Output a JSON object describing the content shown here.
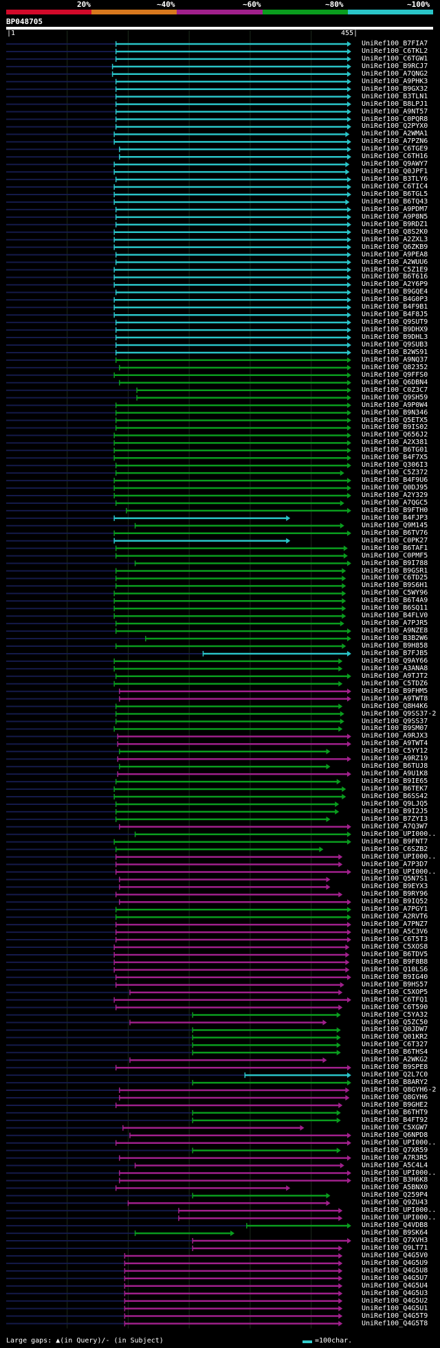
{
  "header": {
    "percent_labels": [
      "20%",
      "~40%",
      "~60%",
      "~80%",
      "~100%"
    ],
    "colors": [
      "#d20a2a",
      "#d7781e",
      "#a0208c",
      "#0a9c1e",
      "#2ac4c8"
    ],
    "sequence_id": "BP048705",
    "scale_start": "|1",
    "scale_end": "455|"
  },
  "hits": [
    {
      "label": "UniRef100_B7FIA7",
      "color": "#2ac4c8",
      "start": 0.315,
      "end": 0.99
    },
    {
      "label": "UniRef100_C6TKL2",
      "color": "#2ac4c8",
      "start": 0.315,
      "end": 0.99
    },
    {
      "label": "UniRef100_C6TGW1",
      "color": "#2ac4c8",
      "start": 0.315,
      "end": 0.99
    },
    {
      "label": "UniRef100_B9RCJ7",
      "color": "#2ac4c8",
      "start": 0.305,
      "end": 0.99
    },
    {
      "label": "UniRef100_A7QNG2",
      "color": "#2ac4c8",
      "start": 0.305,
      "end": 0.99
    },
    {
      "label": "UniRef100_A9PHK3",
      "color": "#2ac4c8",
      "start": 0.315,
      "end": 0.99
    },
    {
      "label": "UniRef100_B9GX32",
      "color": "#2ac4c8",
      "start": 0.315,
      "end": 0.99
    },
    {
      "label": "UniRef100_B3TLN1",
      "color": "#2ac4c8",
      "start": 0.315,
      "end": 0.99
    },
    {
      "label": "UniRef100_B8LPJ1",
      "color": "#2ac4c8",
      "start": 0.315,
      "end": 0.99
    },
    {
      "label": "UniRef100_A9NT57",
      "color": "#2ac4c8",
      "start": 0.315,
      "end": 0.99
    },
    {
      "label": "UniRef100_C0PQR8",
      "color": "#2ac4c8",
      "start": 0.315,
      "end": 0.99
    },
    {
      "label": "UniRef100_Q2PYX0",
      "color": "#2ac4c8",
      "start": 0.315,
      "end": 0.99
    },
    {
      "label": "UniRef100_A2WMA1",
      "color": "#2ac4c8",
      "start": 0.31,
      "end": 0.985
    },
    {
      "label": "UniRef100_A7PZN6",
      "color": "#2ac4c8",
      "start": 0.31,
      "end": 0.99
    },
    {
      "label": "UniRef100_C6TGE9",
      "color": "#2ac4c8",
      "start": 0.325,
      "end": 0.99
    },
    {
      "label": "UniRef100_C6TH16",
      "color": "#2ac4c8",
      "start": 0.325,
      "end": 0.99
    },
    {
      "label": "UniRef100_Q9AWY7",
      "color": "#2ac4c8",
      "start": 0.31,
      "end": 0.985
    },
    {
      "label": "UniRef100_Q0JPF1",
      "color": "#2ac4c8",
      "start": 0.31,
      "end": 0.985
    },
    {
      "label": "UniRef100_B3TLY6",
      "color": "#2ac4c8",
      "start": 0.315,
      "end": 0.99
    },
    {
      "label": "UniRef100_C6TIC4",
      "color": "#2ac4c8",
      "start": 0.31,
      "end": 0.99
    },
    {
      "label": "UniRef100_B6TGL5",
      "color": "#2ac4c8",
      "start": 0.31,
      "end": 0.99
    },
    {
      "label": "UniRef100_B6TQ43",
      "color": "#2ac4c8",
      "start": 0.31,
      "end": 0.985
    },
    {
      "label": "UniRef100_A9PDM7",
      "color": "#2ac4c8",
      "start": 0.315,
      "end": 0.99
    },
    {
      "label": "UniRef100_A9P8N5",
      "color": "#2ac4c8",
      "start": 0.315,
      "end": 0.99
    },
    {
      "label": "UniRef100_B9RDZ1",
      "color": "#2ac4c8",
      "start": 0.315,
      "end": 0.99
    },
    {
      "label": "UniRef100_Q8S2K0",
      "color": "#2ac4c8",
      "start": 0.31,
      "end": 0.99
    },
    {
      "label": "UniRef100_A2ZXL3",
      "color": "#2ac4c8",
      "start": 0.31,
      "end": 0.99
    },
    {
      "label": "UniRef100_Q6ZKB9",
      "color": "#2ac4c8",
      "start": 0.31,
      "end": 0.99
    },
    {
      "label": "UniRef100_A9PEA8",
      "color": "#2ac4c8",
      "start": 0.315,
      "end": 0.99
    },
    {
      "label": "UniRef100_A2WUU6",
      "color": "#2ac4c8",
      "start": 0.315,
      "end": 0.99
    },
    {
      "label": "UniRef100_C5Z1E9",
      "color": "#2ac4c8",
      "start": 0.31,
      "end": 0.99
    },
    {
      "label": "UniRef100_B6T616",
      "color": "#2ac4c8",
      "start": 0.31,
      "end": 0.99
    },
    {
      "label": "UniRef100_A2Y6P9",
      "color": "#2ac4c8",
      "start": 0.31,
      "end": 0.99
    },
    {
      "label": "UniRef100_B9GQE4",
      "color": "#2ac4c8",
      "start": 0.315,
      "end": 0.99
    },
    {
      "label": "UniRef100_B4G0P3",
      "color": "#2ac4c8",
      "start": 0.31,
      "end": 0.99
    },
    {
      "label": "UniRef100_B4F9B1",
      "color": "#2ac4c8",
      "start": 0.31,
      "end": 0.99
    },
    {
      "label": "UniRef100_B4F8J5",
      "color": "#2ac4c8",
      "start": 0.31,
      "end": 0.99
    },
    {
      "label": "UniRef100_Q9SUT9",
      "color": "#2ac4c8",
      "start": 0.315,
      "end": 0.99
    },
    {
      "label": "UniRef100_B9DHX9",
      "color": "#2ac4c8",
      "start": 0.315,
      "end": 0.99
    },
    {
      "label": "UniRef100_B9DHL3",
      "color": "#2ac4c8",
      "start": 0.315,
      "end": 0.99
    },
    {
      "label": "UniRef100_Q9SUB3",
      "color": "#2ac4c8",
      "start": 0.315,
      "end": 0.99
    },
    {
      "label": "UniRef100_B2WS91",
      "color": "#2ac4c8",
      "start": 0.315,
      "end": 0.99
    },
    {
      "label": "UniRef100_A9NQ37",
      "color": "#0a9c1e",
      "start": 0.315,
      "end": 0.99
    },
    {
      "label": "UniRef100_Q82352",
      "color": "#0a9c1e",
      "start": 0.325,
      "end": 0.99
    },
    {
      "label": "UniRef100_Q9FFS0",
      "color": "#0a9c1e",
      "start": 0.31,
      "end": 0.99
    },
    {
      "label": "UniRef100_Q6DBN4",
      "color": "#0a9c1e",
      "start": 0.325,
      "end": 0.99
    },
    {
      "label": "UniRef100_C0Z3C7",
      "color": "#0a9c1e",
      "start": 0.375,
      "end": 0.99
    },
    {
      "label": "UniRef100_Q9SH59",
      "color": "#0a9c1e",
      "start": 0.375,
      "end": 0.99
    },
    {
      "label": "UniRef100_A9P0W4",
      "color": "#0a9c1e",
      "start": 0.315,
      "end": 0.99
    },
    {
      "label": "UniRef100_B9N346",
      "color": "#0a9c1e",
      "start": 0.315,
      "end": 0.99
    },
    {
      "label": "UniRef100_Q5ETX5",
      "color": "#0a9c1e",
      "start": 0.315,
      "end": 0.99
    },
    {
      "label": "UniRef100_B9IS02",
      "color": "#0a9c1e",
      "start": 0.315,
      "end": 0.99
    },
    {
      "label": "UniRef100_Q656J2",
      "color": "#0a9c1e",
      "start": 0.31,
      "end": 0.99
    },
    {
      "label": "UniRef100_A2X381",
      "color": "#0a9c1e",
      "start": 0.31,
      "end": 0.99
    },
    {
      "label": "UniRef100_B6TG01",
      "color": "#0a9c1e",
      "start": 0.31,
      "end": 0.99
    },
    {
      "label": "UniRef100_B4F7X5",
      "color": "#0a9c1e",
      "start": 0.31,
      "end": 0.99
    },
    {
      "label": "UniRef100_Q306I3",
      "color": "#0a9c1e",
      "start": 0.315,
      "end": 0.99
    },
    {
      "label": "UniRef100_C5Z372",
      "color": "#0a9c1e",
      "start": 0.315,
      "end": 0.97
    },
    {
      "label": "UniRef100_B4F9U6",
      "color": "#0a9c1e",
      "start": 0.31,
      "end": 0.99
    },
    {
      "label": "UniRef100_Q0DJ95",
      "color": "#0a9c1e",
      "start": 0.31,
      "end": 0.99
    },
    {
      "label": "UniRef100_A2Y329",
      "color": "#0a9c1e",
      "start": 0.31,
      "end": 0.99
    },
    {
      "label": "UniRef100_A7QGC5",
      "color": "#0a9c1e",
      "start": 0.315,
      "end": 0.97
    },
    {
      "label": "UniRef100_B9FTH0",
      "color": "#0a9c1e",
      "start": 0.345,
      "end": 0.99
    },
    {
      "label": "UniRef100_B4FJP3",
      "color": "#2ac4c8",
      "start": 0.31,
      "end": 0.815
    },
    {
      "label": "UniRef100_Q9M145",
      "color": "#0a9c1e",
      "start": 0.37,
      "end": 0.97
    },
    {
      "label": "UniRef100_B6TV76",
      "color": "#0a9c1e",
      "start": 0.31,
      "end": 0.99
    },
    {
      "label": "UniRef100_C0PK27",
      "color": "#2ac4c8",
      "start": 0.31,
      "end": 0.815
    },
    {
      "label": "UniRef100_B6TAF1",
      "color": "#0a9c1e",
      "start": 0.315,
      "end": 0.98
    },
    {
      "label": "UniRef100_C0PMF5",
      "color": "#0a9c1e",
      "start": 0.315,
      "end": 0.98
    },
    {
      "label": "UniRef100_B9I788",
      "color": "#0a9c1e",
      "start": 0.37,
      "end": 0.99
    },
    {
      "label": "UniRef100_B9GSR1",
      "color": "#0a9c1e",
      "start": 0.315,
      "end": 0.975
    },
    {
      "label": "UniRef100_C6TD25",
      "color": "#0a9c1e",
      "start": 0.315,
      "end": 0.975
    },
    {
      "label": "UniRef100_B9S6H1",
      "color": "#0a9c1e",
      "start": 0.315,
      "end": 0.975
    },
    {
      "label": "UniRef100_C5WY96",
      "color": "#0a9c1e",
      "start": 0.31,
      "end": 0.975
    },
    {
      "label": "UniRef100_B6T4A9",
      "color": "#0a9c1e",
      "start": 0.31,
      "end": 0.975
    },
    {
      "label": "UniRef100_B6SQ11",
      "color": "#0a9c1e",
      "start": 0.31,
      "end": 0.975
    },
    {
      "label": "UniRef100_B4FLV0",
      "color": "#0a9c1e",
      "start": 0.31,
      "end": 0.975
    },
    {
      "label": "UniRef100_A7PJR5",
      "color": "#0a9c1e",
      "start": 0.315,
      "end": 0.97
    },
    {
      "label": "UniRef100_A9NZE8",
      "color": "#0a9c1e",
      "start": 0.315,
      "end": 0.99
    },
    {
      "label": "UniRef100_B3B2W6",
      "color": "#0a9c1e",
      "start": 0.4,
      "end": 0.99
    },
    {
      "label": "UniRef100_B9H858",
      "color": "#0a9c1e",
      "start": 0.315,
      "end": 0.975
    },
    {
      "label": "UniRef100_B7FJB5",
      "color": "#2ac4c8",
      "start": 0.565,
      "end": 0.99
    },
    {
      "label": "UniRef100_Q9AY66",
      "color": "#0a9c1e",
      "start": 0.31,
      "end": 0.965
    },
    {
      "label": "UniRef100_A3ANA8",
      "color": "#0a9c1e",
      "start": 0.31,
      "end": 0.965
    },
    {
      "label": "UniRef100_A9TJT2",
      "color": "#0a9c1e",
      "start": 0.315,
      "end": 0.99
    },
    {
      "label": "UniRef100_C5TDZ6",
      "color": "#0a9c1e",
      "start": 0.31,
      "end": 0.965
    },
    {
      "label": "UniRef100_B9FHM5",
      "color": "#a0208c",
      "start": 0.325,
      "end": 0.99
    },
    {
      "label": "UniRef100_A9TWT8",
      "color": "#a0208c",
      "start": 0.325,
      "end": 0.99
    },
    {
      "label": "UniRef100_Q8H4K6",
      "color": "#0a9c1e",
      "start": 0.315,
      "end": 0.965
    },
    {
      "label": "UniRef100_Q9SS37-2",
      "color": "#0a9c1e",
      "start": 0.315,
      "end": 0.97
    },
    {
      "label": "UniRef100_Q9SS37",
      "color": "#0a9c1e",
      "start": 0.315,
      "end": 0.97
    },
    {
      "label": "UniRef100_B9SM07",
      "color": "#0a9c1e",
      "start": 0.31,
      "end": 0.965
    },
    {
      "label": "UniRef100_A9RJX3",
      "color": "#a0208c",
      "start": 0.32,
      "end": 0.99
    },
    {
      "label": "UniRef100_A9TWT4",
      "color": "#a0208c",
      "start": 0.32,
      "end": 0.99
    },
    {
      "label": "UniRef100_C5YY12",
      "color": "#0a9c1e",
      "start": 0.325,
      "end": 0.93
    },
    {
      "label": "UniRef100_A9RZ19",
      "color": "#a0208c",
      "start": 0.32,
      "end": 0.99
    },
    {
      "label": "UniRef100_B6TUJ8",
      "color": "#0a9c1e",
      "start": 0.325,
      "end": 0.93
    },
    {
      "label": "UniRef100_A9U1K8",
      "color": "#a0208c",
      "start": 0.32,
      "end": 0.99
    },
    {
      "label": "UniRef100_B9IE65",
      "color": "#0a9c1e",
      "start": 0.315,
      "end": 0.96
    },
    {
      "label": "UniRef100_B6TEK7",
      "color": "#0a9c1e",
      "start": 0.31,
      "end": 0.975
    },
    {
      "label": "UniRef100_B6SS42",
      "color": "#0a9c1e",
      "start": 0.31,
      "end": 0.975
    },
    {
      "label": "UniRef100_Q9LJQ5",
      "color": "#0a9c1e",
      "start": 0.315,
      "end": 0.955
    },
    {
      "label": "UniRef100_B9I2J5",
      "color": "#0a9c1e",
      "start": 0.315,
      "end": 0.955
    },
    {
      "label": "UniRef100_B7ZYI3",
      "color": "#0a9c1e",
      "start": 0.315,
      "end": 0.93
    },
    {
      "label": "UniRef100_A7Q3W7",
      "color": "#a0208c",
      "start": 0.325,
      "end": 0.99
    },
    {
      "label": "UniRef100_UPI000..",
      "color": "#0a9c1e",
      "start": 0.37,
      "end": 0.99
    },
    {
      "label": "UniRef100_B9FNT7",
      "color": "#0a9c1e",
      "start": 0.31,
      "end": 0.99
    },
    {
      "label": "UniRef100_C6SZB2",
      "color": "#0a9c1e",
      "start": 0.315,
      "end": 0.91
    },
    {
      "label": "UniRef100_UPI000..",
      "color": "#a0208c",
      "start": 0.315,
      "end": 0.965
    },
    {
      "label": "UniRef100_A7P3D7",
      "color": "#a0208c",
      "start": 0.315,
      "end": 0.965
    },
    {
      "label": "UniRef100_UPI000..",
      "color": "#a0208c",
      "start": 0.315,
      "end": 0.99
    },
    {
      "label": "UniRef100_Q5N7S1",
      "color": "#a0208c",
      "start": 0.325,
      "end": 0.93
    },
    {
      "label": "UniRef100_B9EYX3",
      "color": "#a0208c",
      "start": 0.325,
      "end": 0.93
    },
    {
      "label": "UniRef100_B9RY96",
      "color": "#a0208c",
      "start": 0.315,
      "end": 0.965
    },
    {
      "label": "UniRef100_B9IQ52",
      "color": "#a0208c",
      "start": 0.325,
      "end": 0.99
    },
    {
      "label": "UniRef100_A7PGY1",
      "color": "#0a9c1e",
      "start": 0.315,
      "end": 0.99
    },
    {
      "label": "UniRef100_A2RVT6",
      "color": "#0a9c1e",
      "start": 0.315,
      "end": 0.99
    },
    {
      "label": "UniRef100_A7PNZ7",
      "color": "#a0208c",
      "start": 0.315,
      "end": 0.99
    },
    {
      "label": "UniRef100_A5C3V6",
      "color": "#a0208c",
      "start": 0.315,
      "end": 0.99
    },
    {
      "label": "UniRef100_C6T5T3",
      "color": "#a0208c",
      "start": 0.315,
      "end": 0.99
    },
    {
      "label": "UniRef100_C5XOS8",
      "color": "#a0208c",
      "start": 0.31,
      "end": 0.985
    },
    {
      "label": "UniRef100_B6TDV5",
      "color": "#a0208c",
      "start": 0.31,
      "end": 0.985
    },
    {
      "label": "UniRef100_B9F8B8",
      "color": "#a0208c",
      "start": 0.31,
      "end": 0.985
    },
    {
      "label": "UniRef100_Q10LS6",
      "color": "#a0208c",
      "start": 0.31,
      "end": 0.985
    },
    {
      "label": "UniRef100_B9IG40",
      "color": "#a0208c",
      "start": 0.315,
      "end": 0.99
    },
    {
      "label": "UniRef100_B9HS57",
      "color": "#a0208c",
      "start": 0.315,
      "end": 0.97
    },
    {
      "label": "UniRef100_C5XOP5",
      "color": "#a0208c",
      "start": 0.355,
      "end": 0.965
    },
    {
      "label": "UniRef100_C6TFQ1",
      "color": "#a0208c",
      "start": 0.31,
      "end": 0.99
    },
    {
      "label": "UniRef100_C6T590",
      "color": "#a0208c",
      "start": 0.315,
      "end": 0.965
    },
    {
      "label": "UniRef100_C5YA32",
      "color": "#0a9c1e",
      "start": 0.535,
      "end": 0.96
    },
    {
      "label": "UniRef100_Q5ZC50",
      "color": "#a0208c",
      "start": 0.355,
      "end": 0.92
    },
    {
      "label": "UniRef100_Q0JDW7",
      "color": "#0a9c1e",
      "start": 0.535,
      "end": 0.96
    },
    {
      "label": "UniRef100_Q01KR2",
      "color": "#0a9c1e",
      "start": 0.535,
      "end": 0.96
    },
    {
      "label": "UniRef100_C6T327",
      "color": "#0a9c1e",
      "start": 0.535,
      "end": 0.96
    },
    {
      "label": "UniRef100_B6THS4",
      "color": "#0a9c1e",
      "start": 0.535,
      "end": 0.96
    },
    {
      "label": "UniRef100_A2WKG2",
      "color": "#a0208c",
      "start": 0.355,
      "end": 0.92
    },
    {
      "label": "UniRef100_B9SPE8",
      "color": "#a0208c",
      "start": 0.315,
      "end": 0.99
    },
    {
      "label": "UniRef100_Q2L7C0",
      "color": "#2ac4c8",
      "start": 0.685,
      "end": 0.99
    },
    {
      "label": "UniRef100_B8ARY2",
      "color": "#0a9c1e",
      "start": 0.535,
      "end": 0.99
    },
    {
      "label": "UniRef100_Q8GYH6-2",
      "color": "#a0208c",
      "start": 0.325,
      "end": 0.985
    },
    {
      "label": "UniRef100_Q8GYH6",
      "color": "#a0208c",
      "start": 0.325,
      "end": 0.985
    },
    {
      "label": "UniRef100_B9GHE2",
      "color": "#a0208c",
      "start": 0.315,
      "end": 0.965
    },
    {
      "label": "UniRef100_B6THT9",
      "color": "#0a9c1e",
      "start": 0.535,
      "end": 0.96
    },
    {
      "label": "UniRef100_B4FT92",
      "color": "#0a9c1e",
      "start": 0.535,
      "end": 0.96
    },
    {
      "label": "UniRef100_C5XGW7",
      "color": "#a0208c",
      "start": 0.335,
      "end": 0.855
    },
    {
      "label": "UniRef100_Q6NPD8",
      "color": "#a0208c",
      "start": 0.355,
      "end": 0.99
    },
    {
      "label": "UniRef100_UPI000..",
      "color": "#a0208c",
      "start": 0.315,
      "end": 0.99
    },
    {
      "label": "UniRef100_Q7XR59",
      "color": "#0a9c1e",
      "start": 0.535,
      "end": 0.96
    },
    {
      "label": "UniRef100_A7R3R5",
      "color": "#a0208c",
      "start": 0.325,
      "end": 0.99
    },
    {
      "label": "UniRef100_A5C4L4",
      "color": "#a0208c",
      "start": 0.37,
      "end": 0.97
    },
    {
      "label": "UniRef100_UPI000..",
      "color": "#a0208c",
      "start": 0.325,
      "end": 0.99
    },
    {
      "label": "UniRef100_B3H6K8",
      "color": "#a0208c",
      "start": 0.325,
      "end": 0.99
    },
    {
      "label": "UniRef100_A5BNX0",
      "color": "#a0208c",
      "start": 0.315,
      "end": 0.815
    },
    {
      "label": "UniRef100_Q259P4",
      "color": "#0a9c1e",
      "start": 0.535,
      "end": 0.93
    },
    {
      "label": "UniRef100_Q9ZU43",
      "color": "#a0208c",
      "start": 0.35,
      "end": 0.93
    },
    {
      "label": "UniRef100_UPI000..",
      "color": "#a0208c",
      "start": 0.495,
      "end": 0.965
    },
    {
      "label": "UniRef100_UPI000..",
      "color": "#a0208c",
      "start": 0.495,
      "end": 0.965
    },
    {
      "label": "UniRef100_Q4VDB8",
      "color": "#0a9c1e",
      "start": 0.69,
      "end": 0.99
    },
    {
      "label": "UniRef100_B9SK64",
      "color": "#0a9c1e",
      "start": 0.37,
      "end": 0.655
    },
    {
      "label": "UniRef100_Q7XVH3",
      "color": "#a0208c",
      "start": 0.535,
      "end": 0.99
    },
    {
      "label": "UniRef100_Q9LT71",
      "color": "#a0208c",
      "start": 0.535,
      "end": 0.965
    },
    {
      "label": "UniRef100_Q4G5V0",
      "color": "#a0208c",
      "start": 0.34,
      "end": 0.965
    },
    {
      "label": "UniRef100_Q4G5U9",
      "color": "#a0208c",
      "start": 0.34,
      "end": 0.965
    },
    {
      "label": "UniRef100_Q4G5U8",
      "color": "#a0208c",
      "start": 0.34,
      "end": 0.965
    },
    {
      "label": "UniRef100_Q4G5U7",
      "color": "#a0208c",
      "start": 0.34,
      "end": 0.965
    },
    {
      "label": "UniRef100_Q4G5U4",
      "color": "#a0208c",
      "start": 0.34,
      "end": 0.965
    },
    {
      "label": "UniRef100_Q4G5U3",
      "color": "#a0208c",
      "start": 0.34,
      "end": 0.965
    },
    {
      "label": "UniRef100_Q4G5U2",
      "color": "#a0208c",
      "start": 0.34,
      "end": 0.965
    },
    {
      "label": "UniRef100_Q4G5U1",
      "color": "#a0208c",
      "start": 0.34,
      "end": 0.965
    },
    {
      "label": "UniRef100_Q4G5T9",
      "color": "#a0208c",
      "start": 0.34,
      "end": 0.965
    },
    {
      "label": "UniRef100_Q4G5T8",
      "color": "#a0208c",
      "start": 0.34,
      "end": 0.965
    }
  ],
  "footer": {
    "gaps_text": "Large gaps: ▲(in Query)/- (in Subject)",
    "legend_text": "=100char.",
    "legend_color": "#33cccc"
  }
}
